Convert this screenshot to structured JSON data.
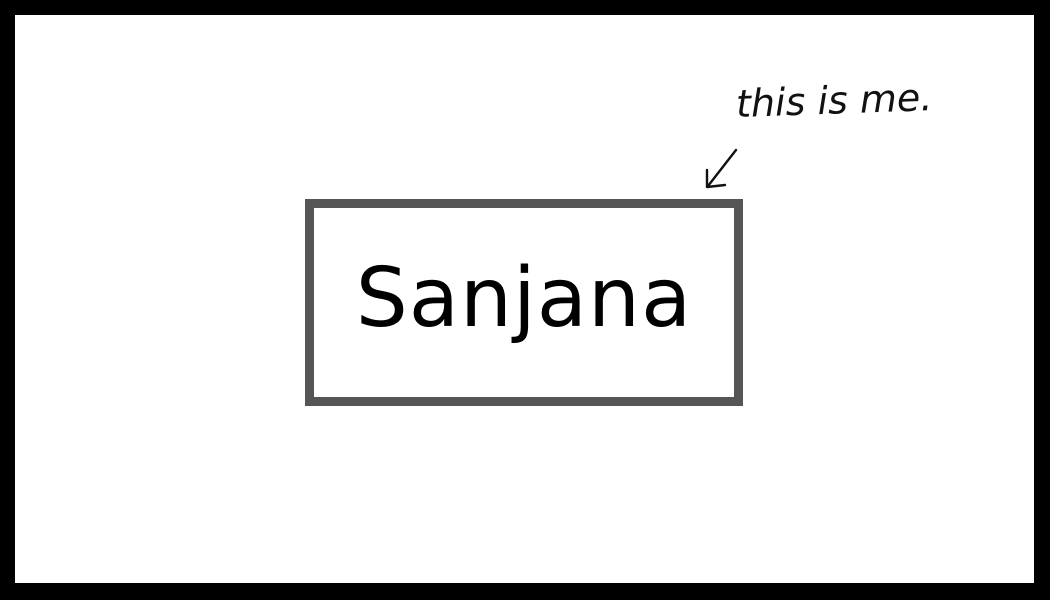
{
  "card": {
    "name": "Sanjana",
    "annotation": "this is me."
  },
  "colors": {
    "border": "#000000",
    "background": "#ffffff",
    "box_outline": "#555555",
    "text": "#000000"
  },
  "icons": {
    "arrow": "arrow-pointing-down-left-icon"
  }
}
